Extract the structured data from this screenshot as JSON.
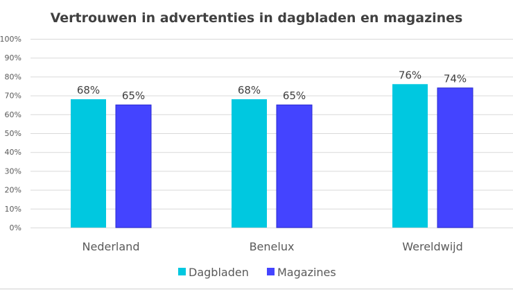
{
  "chart_data": {
    "type": "bar",
    "title": "Vertrouwen in advertenties in dagbladen en magazines",
    "categories": [
      "Nederland",
      "Benelux",
      "Wereldwijd"
    ],
    "series": [
      {
        "name": "Dagbladen",
        "values": [
          68,
          68,
          76
        ],
        "labels": [
          "68%",
          "68%",
          "76%"
        ],
        "color": "#00C8E0"
      },
      {
        "name": "Magazines",
        "values": [
          65,
          65,
          74
        ],
        "labels": [
          "65%",
          "65%",
          "74%"
        ],
        "color": "#4444FF"
      }
    ],
    "ylim": [
      0,
      100
    ],
    "yticks": [
      "0%",
      "10%",
      "20%",
      "30%",
      "40%",
      "50%",
      "60%",
      "70%",
      "80%",
      "90%",
      "100%"
    ],
    "grid": true,
    "legend": "bottom"
  }
}
